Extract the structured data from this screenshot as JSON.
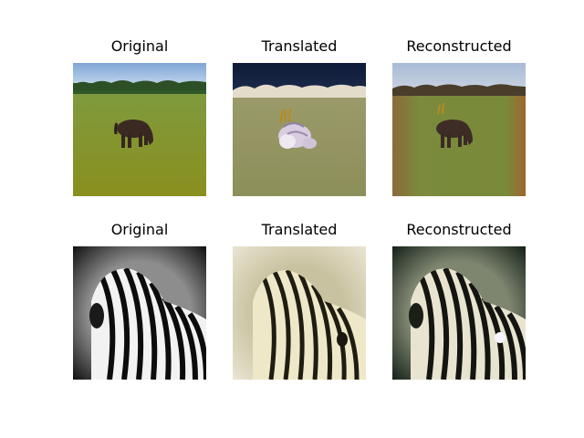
{
  "rows": [
    {
      "panels": [
        {
          "title": "Original",
          "subject": "horse-on-grass"
        },
        {
          "title": "Translated",
          "subject": "zebra-like-horse-on-grass"
        },
        {
          "title": "Reconstructed",
          "subject": "reconstructed-horse-on-grass"
        }
      ]
    },
    {
      "panels": [
        {
          "title": "Original",
          "subject": "grayscale-zebra"
        },
        {
          "title": "Translated",
          "subject": "sepia-zebra"
        },
        {
          "title": "Reconstructed",
          "subject": "reconstructed-zebra"
        }
      ]
    }
  ]
}
